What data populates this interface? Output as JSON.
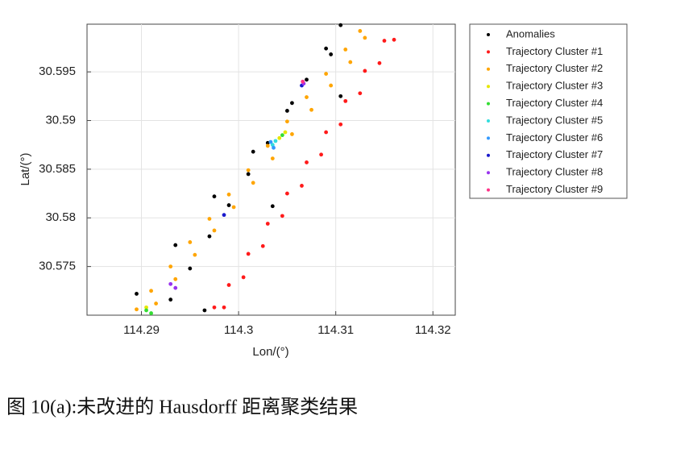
{
  "chart_data": {
    "type": "scatter",
    "caption": "图 10(a):未改进的 Hausdorff 距离聚类结果",
    "x_label": "Lon/(°)",
    "y_label": "Lat/(°)",
    "xlim": [
      114.2844,
      114.3223
    ],
    "ylim": [
      30.57,
      30.5999
    ],
    "xticks": [
      114.29,
      114.3,
      114.31,
      114.32
    ],
    "yticks": [
      30.575,
      30.58,
      30.585,
      30.59,
      30.595
    ],
    "grid": true,
    "legend": "right",
    "series": [
      {
        "name": "Anomalies",
        "color": "#000000",
        "x": [
          114.293,
          114.295,
          114.297,
          114.299,
          114.301,
          114.303,
          114.305,
          114.307,
          114.309,
          114.3105,
          114.2895,
          114.2935,
          114.2975,
          114.3015,
          114.3055,
          114.3095,
          114.2965,
          114.3035,
          114.3105
        ],
        "y": [
          30.5716,
          30.5748,
          30.5781,
          30.5813,
          30.5845,
          30.5877,
          30.591,
          30.5942,
          30.5974,
          30.5998,
          30.5722,
          30.5772,
          30.5822,
          30.5868,
          30.5918,
          30.5968,
          30.5705,
          30.5812,
          30.5925
        ]
      },
      {
        "name": "Trajectory Cluster #1",
        "color": "#ff1a1a",
        "x": [
          114.2975,
          114.299,
          114.301,
          114.303,
          114.305,
          114.307,
          114.309,
          114.311,
          114.313,
          114.315,
          114.2985,
          114.3005,
          114.3025,
          114.3045,
          114.3065,
          114.3085,
          114.3105,
          114.3125,
          114.3145,
          114.316
        ],
        "y": [
          30.5708,
          30.5731,
          30.5763,
          30.5794,
          30.5825,
          30.5857,
          30.5888,
          30.592,
          30.5951,
          30.5982,
          30.5708,
          30.5739,
          30.5771,
          30.5802,
          30.5833,
          30.5865,
          30.5896,
          30.5928,
          30.5959,
          30.5983
        ]
      },
      {
        "name": "Trajectory Cluster #2",
        "color": "#ffa500",
        "x": [
          114.2895,
          114.291,
          114.293,
          114.295,
          114.297,
          114.299,
          114.301,
          114.303,
          114.305,
          114.307,
          114.309,
          114.311,
          114.3125,
          114.2915,
          114.2935,
          114.2955,
          114.2975,
          114.2995,
          114.3015,
          114.3035,
          114.3055,
          114.3075,
          114.3095,
          114.3115,
          114.313
        ],
        "y": [
          30.5706,
          30.5725,
          30.575,
          30.5775,
          30.5799,
          30.5824,
          30.5849,
          30.5874,
          30.5899,
          30.5924,
          30.5948,
          30.5973,
          30.5992,
          30.5712,
          30.5737,
          30.5762,
          30.5787,
          30.5811,
          30.5836,
          30.5861,
          30.5886,
          30.5911,
          30.5936,
          30.596,
          30.5985
        ]
      },
      {
        "name": "Trajectory Cluster #3",
        "color": "#e6e600",
        "x": [
          114.3042,
          114.3048,
          114.2905
        ],
        "y": [
          30.5882,
          30.5888,
          30.5708
        ]
      },
      {
        "name": "Trajectory Cluster #4",
        "color": "#33dd33",
        "x": [
          114.2905,
          114.3045,
          114.291
        ],
        "y": [
          30.5705,
          30.5885,
          30.5702
        ]
      },
      {
        "name": "Trajectory Cluster #5",
        "color": "#33dddd",
        "x": [
          114.3035,
          114.3038
        ],
        "y": [
          30.5875,
          30.5879
        ]
      },
      {
        "name": "Trajectory Cluster #6",
        "color": "#3399ff",
        "x": [
          114.3033,
          114.3036
        ],
        "y": [
          30.5878,
          30.5872
        ]
      },
      {
        "name": "Trajectory Cluster #7",
        "color": "#1a1acc",
        "x": [
          114.2985,
          114.3065
        ],
        "y": [
          30.5803,
          30.5936
        ]
      },
      {
        "name": "Trajectory Cluster #8",
        "color": "#9933ee",
        "x": [
          114.293,
          114.2935,
          114.3067
        ],
        "y": [
          30.5732,
          30.5728,
          30.5938
        ]
      },
      {
        "name": "Trajectory Cluster #9",
        "color": "#ff3388",
        "x": [
          114.3066
        ],
        "y": [
          30.594
        ]
      }
    ]
  }
}
